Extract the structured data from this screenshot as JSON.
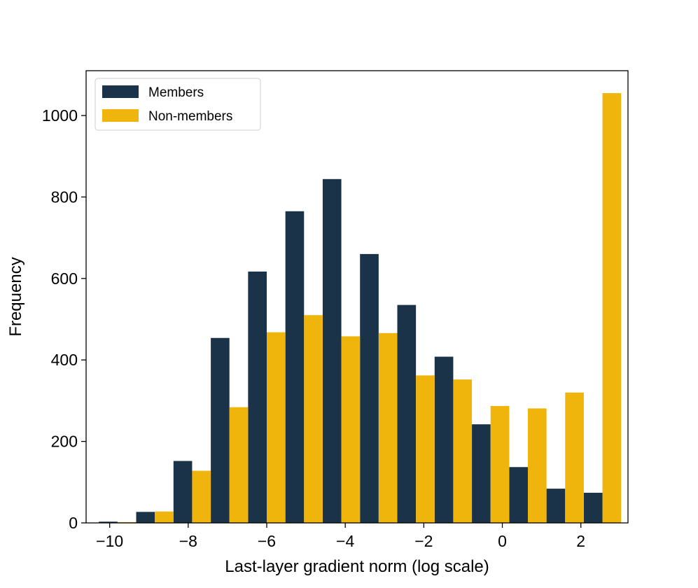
{
  "chart_data": {
    "type": "bar",
    "title": "",
    "xlabel": "Last-layer gradient norm (log scale)",
    "ylabel": "Frequency",
    "xlim": [
      -10.6,
      3.2
    ],
    "ylim": [
      0,
      1110
    ],
    "xticks": [
      {
        "value": -10,
        "label": "−10"
      },
      {
        "value": -8,
        "label": "−8"
      },
      {
        "value": -6,
        "label": "−6"
      },
      {
        "value": -4,
        "label": "−4"
      },
      {
        "value": -2,
        "label": "−2"
      },
      {
        "value": 0,
        "label": "0"
      },
      {
        "value": 2,
        "label": "2"
      }
    ],
    "yticks": [
      {
        "value": 0,
        "label": "0"
      },
      {
        "value": 200,
        "label": "200"
      },
      {
        "value": 400,
        "label": "400"
      },
      {
        "value": 600,
        "label": "600"
      },
      {
        "value": 800,
        "label": "800"
      },
      {
        "value": 1000,
        "label": "1000"
      }
    ],
    "bin_centers": [
      -9.8,
      -8.85,
      -7.9,
      -6.95,
      -6.0,
      -5.05,
      -4.1,
      -3.15,
      -2.2,
      -1.25,
      -0.3,
      0.65,
      1.6,
      2.55
    ],
    "bar_width": 0.475,
    "legend_position": "top-left",
    "series": [
      {
        "name": "Members",
        "color": "#1b3349",
        "values": [
          3,
          27,
          152,
          454,
          617,
          765,
          844,
          660,
          535,
          408,
          242,
          137,
          84,
          74
        ]
      },
      {
        "name": "Non-members",
        "color": "#efb50d",
        "values": [
          2,
          28,
          128,
          284,
          468,
          510,
          458,
          466,
          362,
          352,
          287,
          281,
          320,
          1055
        ]
      }
    ]
  }
}
